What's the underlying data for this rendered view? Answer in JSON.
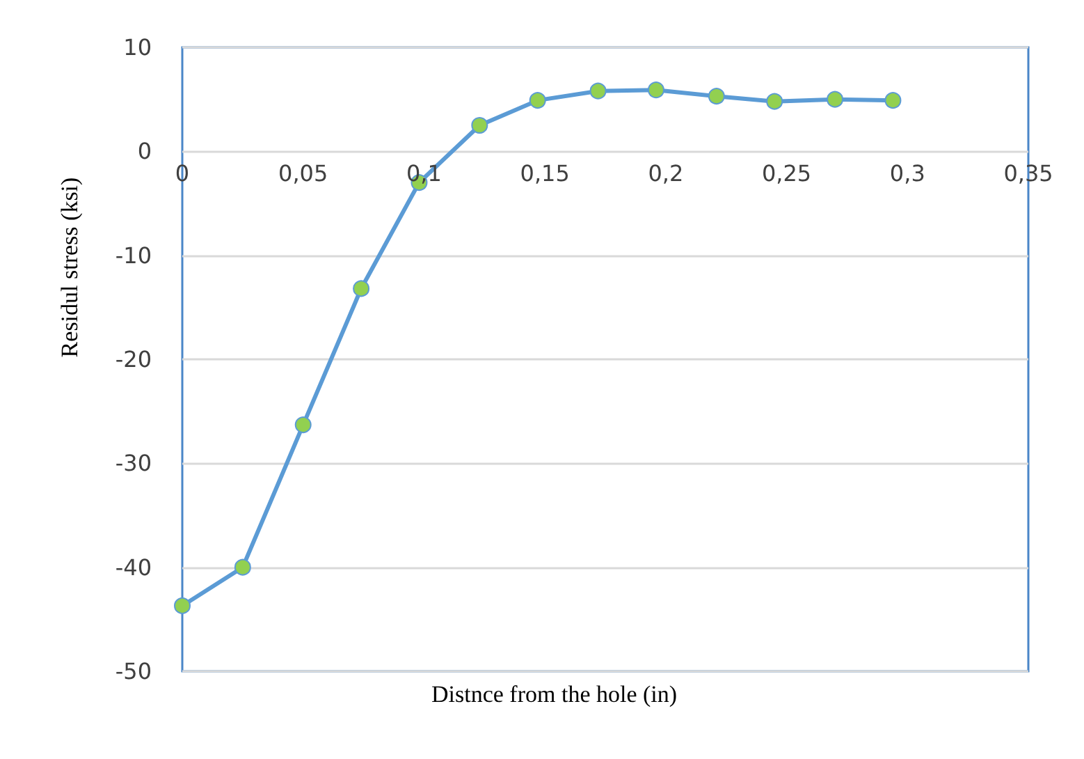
{
  "chart_data": {
    "type": "line",
    "xlabel": "Distnce from the hole (in)",
    "ylabel": "Residul stress (ksi)",
    "x": [
      0,
      0.025,
      0.05,
      0.074,
      0.098,
      0.123,
      0.147,
      0.172,
      0.196,
      0.221,
      0.245,
      0.27,
      0.294
    ],
    "series": [
      {
        "color": "#5b9bd5",
        "colors": [
          "#92d050",
          "#92d050",
          "#92d050",
          "#92d050",
          "#92d050",
          "#92d050",
          "#92d050",
          "#92d050",
          "#92d050",
          "#92d050",
          "#92d050",
          "#92d050",
          "#92d050"
        ],
        "values": [
          -43.7,
          -40.0,
          -26.3,
          -13.2,
          -3.0,
          2.5,
          4.9,
          5.8,
          5.9,
          5.3,
          4.8,
          5.0,
          4.9
        ]
      }
    ],
    "xlim": [
      0,
      0.35
    ],
    "xticks": [
      {
        "value": 0,
        "label": "0"
      },
      {
        "value": 0.05,
        "label": "0,05"
      },
      {
        "value": 0.1,
        "label": "0,1"
      },
      {
        "value": 0.15,
        "label": "0,15"
      },
      {
        "value": 0.2,
        "label": "0,2"
      },
      {
        "value": 0.25,
        "label": "0,25"
      },
      {
        "value": 0.3,
        "label": "0,3"
      },
      {
        "value": 0.35,
        "label": "0,35"
      }
    ],
    "ylim": [
      -50,
      10
    ],
    "yticks": [
      -50,
      -40,
      -30,
      -20,
      -10,
      0,
      10
    ],
    "grid": "y",
    "marker": "circle",
    "line_style": "solid"
  }
}
